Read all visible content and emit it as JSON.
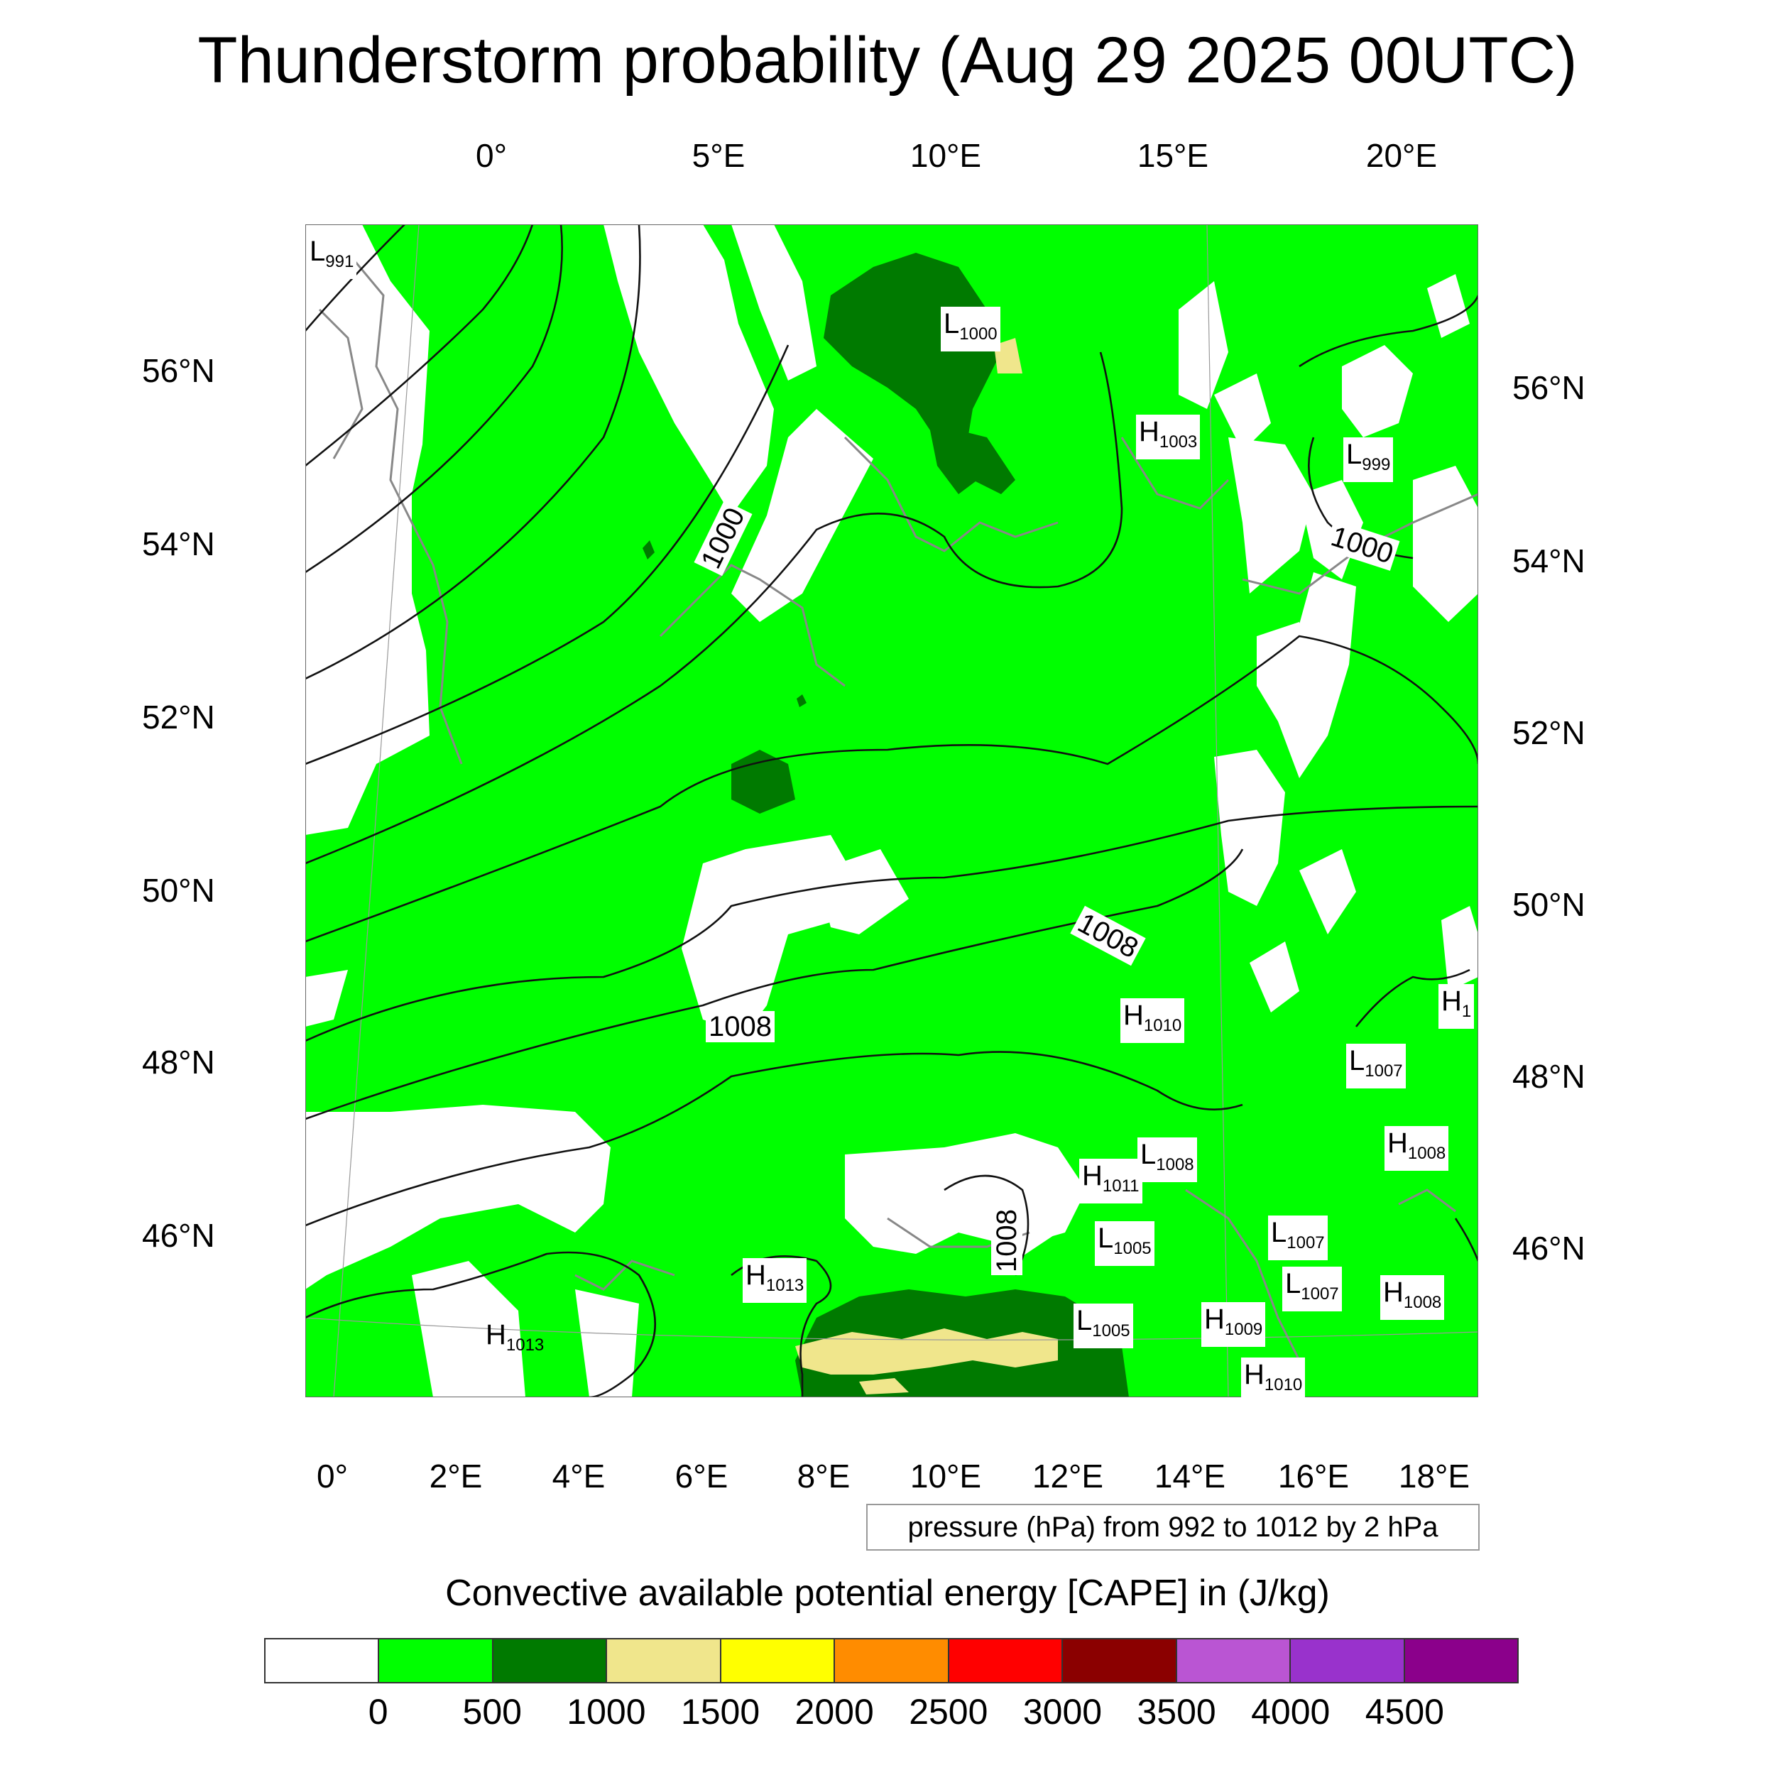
{
  "title": "Thunderstorm probability (Aug 29 2025 00UTC)",
  "top_lon_labels": [
    "0°",
    "5°E",
    "10°E",
    "15°E",
    "20°E"
  ],
  "bottom_lon_labels": [
    "0°",
    "2°E",
    "4°E",
    "6°E",
    "8°E",
    "10°E",
    "12°E",
    "14°E",
    "16°E",
    "18°E"
  ],
  "left_lat_labels": [
    "56°N",
    "54°N",
    "52°N",
    "50°N",
    "48°N",
    "46°N"
  ],
  "right_lat_labels": [
    "56°N",
    "54°N",
    "52°N",
    "50°N",
    "48°N",
    "46°N"
  ],
  "pressure_labels": [
    {
      "kind": "L",
      "value": "991"
    },
    {
      "kind": "L",
      "value": "1000"
    },
    {
      "kind": "H",
      "value": "1003"
    },
    {
      "kind": "L",
      "value": "999"
    },
    {
      "kind": "H",
      "value": "1010"
    },
    {
      "kind": "H",
      "value": "1"
    },
    {
      "kind": "L",
      "value": "1007"
    },
    {
      "kind": "H",
      "value": "1008"
    },
    {
      "kind": "L",
      "value": "1008"
    },
    {
      "kind": "H",
      "value": "1011"
    },
    {
      "kind": "L",
      "value": "1005"
    },
    {
      "kind": "L",
      "value": "1007"
    },
    {
      "kind": "H",
      "value": "1013"
    },
    {
      "kind": "L",
      "value": "1007"
    },
    {
      "kind": "H",
      "value": "1008"
    },
    {
      "kind": "H",
      "value": "1013"
    },
    {
      "kind": "L",
      "value": "1005"
    },
    {
      "kind": "H",
      "value": "1009"
    },
    {
      "kind": "H",
      "value": "1010"
    }
  ],
  "isobar_labels": [
    "1000",
    "1000",
    "1008",
    "1008",
    "1008"
  ],
  "contour_note": "pressure (hPa) from 992 to 1012 by 2 hPa",
  "colorbar": {
    "title": "Convective available potential energy [CAPE] in (J/kg)",
    "colors": [
      "#ffffff",
      "#00ff00",
      "#007a00",
      "#f0e68c",
      "#ffff00",
      "#ff8c00",
      "#ff0000",
      "#8b0000",
      "#ba55d3",
      "#9932cc",
      "#8b008b"
    ],
    "labels": [
      "0",
      "500",
      "1000",
      "1500",
      "2000",
      "2500",
      "3000",
      "3500",
      "4000",
      "4500"
    ]
  }
}
